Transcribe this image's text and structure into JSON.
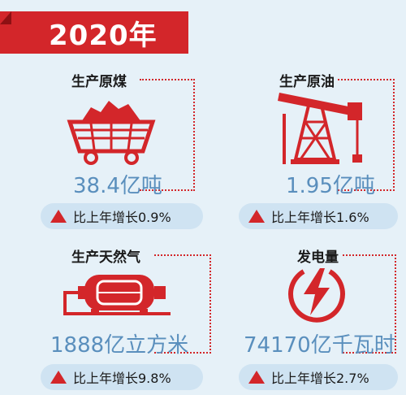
{
  "banner": {
    "title": "2020年"
  },
  "cards": [
    {
      "label": "生产原煤",
      "icon": "coal-cart-icon",
      "value": "38.4亿吨",
      "change": "比上年增长0.9%"
    },
    {
      "label": "生产原油",
      "icon": "oil-pumpjack-icon",
      "value": "1.95亿吨",
      "change": "比上年增长1.6%"
    },
    {
      "label": "生产天然气",
      "icon": "gas-tank-icon",
      "value": "1888亿立方米",
      "change": "比上年增长9.8%"
    },
    {
      "label": "发电量",
      "icon": "lightning-bolt-icon",
      "value": "74170亿千瓦时",
      "change": "比上年增长2.7%"
    }
  ],
  "colors": {
    "accent": "#d3262a",
    "value_text": "#5a8fbd",
    "background": "#e6f1f8",
    "pill": "#cfe3f2"
  },
  "trend_icon": "up-triangle-icon"
}
